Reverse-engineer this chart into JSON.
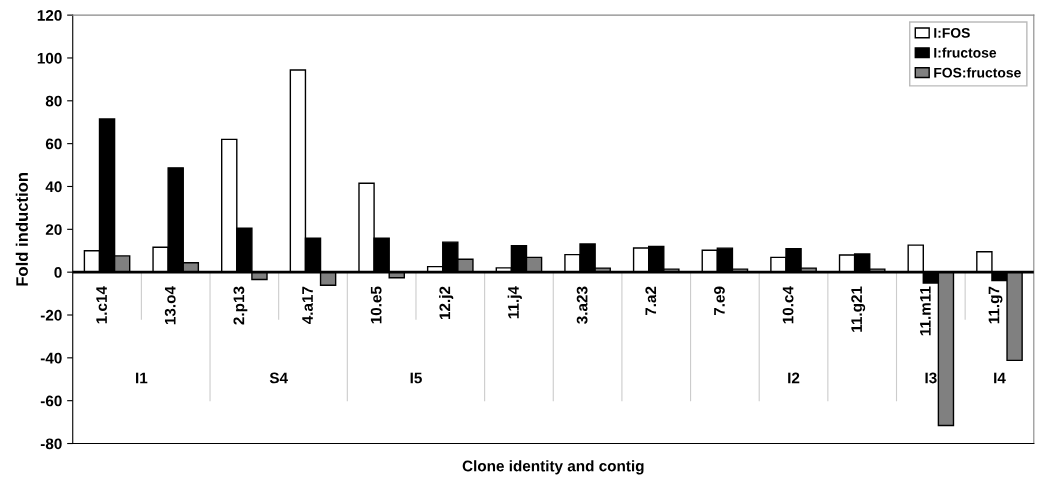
{
  "chart_data": {
    "type": "bar",
    "xlabel": "Clone identity and contig",
    "ylabel": "Fold induction",
    "categories": [
      "1.c14",
      "13.o4",
      "2.p13",
      "4.a17",
      "10.e5",
      "12.j2",
      "11.j4",
      "3.a23",
      "7.a2",
      "7.e9",
      "10.c4",
      "11.g21",
      "11.m11",
      "11.g7"
    ],
    "series": [
      {
        "name": "I:FOS",
        "color": "#ffffff",
        "values": [
          10,
          11.6,
          62,
          94.4,
          41.5,
          2.6,
          2,
          8.2,
          11.3,
          10.2,
          6.9,
          8,
          12.6,
          9.5
        ]
      },
      {
        "name": "I:fructose",
        "color": "#000000",
        "values": [
          71.5,
          48.7,
          20.5,
          15.9,
          15.9,
          14,
          12.4,
          13.2,
          12,
          11.2,
          10.9,
          8.5,
          -5.1,
          -3.9
        ]
      },
      {
        "name": "FOS:fructose",
        "color": "#808080",
        "values": [
          7.6,
          4.4,
          -3.4,
          -6.1,
          -2.6,
          6,
          6.9,
          1.9,
          1.4,
          1.4,
          1.9,
          1.4,
          -71.6,
          -41.2
        ]
      }
    ],
    "annotations": [
      "I1",
      "S4",
      "I5",
      "I2",
      "I3",
      "I4"
    ],
    "ylim": [
      -80,
      120
    ],
    "yticks": [
      -80,
      -60,
      -40,
      -20,
      0,
      20,
      40,
      60,
      80,
      100,
      120
    ],
    "legend": "top right",
    "grid": false
  }
}
